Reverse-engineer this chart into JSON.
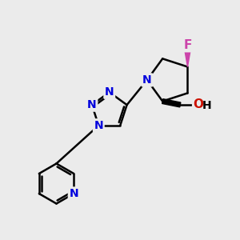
{
  "bg_color": "#ebebeb",
  "bond_color": "#000000",
  "bond_width": 1.8,
  "atom_colors": {
    "N": "#0000dd",
    "O": "#cc1100",
    "F": "#cc44aa",
    "H": "#000000",
    "C": "#000000"
  },
  "font_size_atom": 10,
  "figsize": [
    3.0,
    3.0
  ],
  "dpi": 100
}
